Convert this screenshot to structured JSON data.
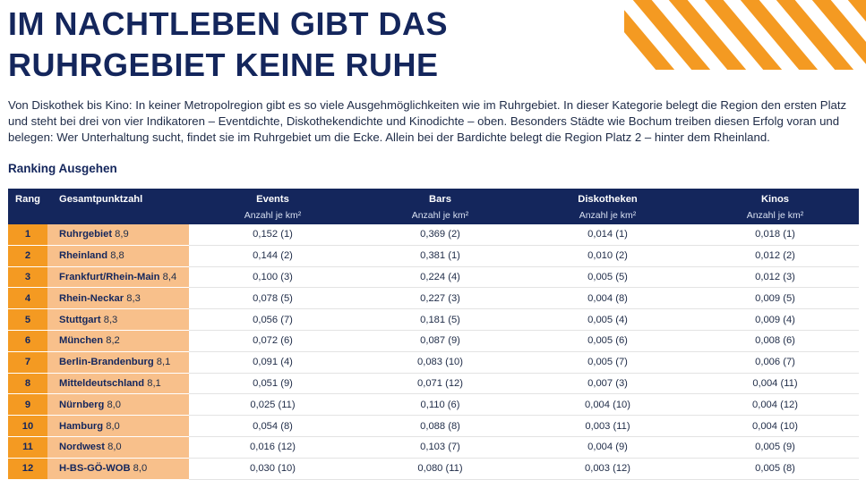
{
  "title_line1": "IM NACHTLEBEN GIBT DAS",
  "title_line2": "RUHRGEBIET KEINE RUHE",
  "intro": "Von Diskothek bis Kino: In keiner Metropolregion gibt es so viele Ausgehmöglichkeiten wie im Ruhrgebiet. In dieser Kategorie belegt die Region den ersten Platz und steht bei drei von vier Indikatoren – Eventdichte, Diskothekendichte und Kinodichte – oben. Besonders Städte wie Bochum treiben diesen Erfolg voran und belegen: Wer Unterhaltung sucht, findet sie im Ruhrgebiet um die Ecke. Allein bei der Bardichte belegt die Region Platz 2 – hinter dem Rheinland.",
  "section_title": "Ranking Ausgehen",
  "colors": {
    "navy": "#14265c",
    "orange": "#f49a22",
    "light_orange": "#f8c08b"
  },
  "table": {
    "headers": {
      "rang": "Rang",
      "gesamt": "Gesamtpunktzahl",
      "events": "Events",
      "bars": "Bars",
      "disko": "Diskotheken",
      "kinos": "Kinos",
      "unit": "Anzahl je km²"
    },
    "rows": [
      {
        "rank": "1",
        "region": "Ruhrgebiet",
        "score": "8,9",
        "events": "0,152 (1)",
        "bars": "0,369 (2)",
        "disko": "0,014 (1)",
        "kinos": "0,018 (1)"
      },
      {
        "rank": "2",
        "region": "Rheinland",
        "score": "8,8",
        "events": "0,144 (2)",
        "bars": "0,381 (1)",
        "disko": "0,010 (2)",
        "kinos": "0,012 (2)"
      },
      {
        "rank": "3",
        "region": "Frankfurt/Rhein-Main",
        "score": "8,4",
        "events": "0,100 (3)",
        "bars": "0,224 (4)",
        "disko": "0,005 (5)",
        "kinos": "0,012 (3)"
      },
      {
        "rank": "4",
        "region": "Rhein-Neckar",
        "score": "8,3",
        "events": "0,078 (5)",
        "bars": "0,227 (3)",
        "disko": "0,004 (8)",
        "kinos": "0,009 (5)"
      },
      {
        "rank": "5",
        "region": "Stuttgart",
        "score": "8,3",
        "events": "0,056 (7)",
        "bars": "0,181 (5)",
        "disko": "0,005 (4)",
        "kinos": "0,009 (4)"
      },
      {
        "rank": "6",
        "region": "München",
        "score": "8,2",
        "events": "0,072 (6)",
        "bars": "0,087 (9)",
        "disko": "0,005 (6)",
        "kinos": "0,008 (6)"
      },
      {
        "rank": "7",
        "region": "Berlin-Brandenburg",
        "score": "8,1",
        "events": "0,091 (4)",
        "bars": "0,083 (10)",
        "disko": "0,005 (7)",
        "kinos": "0,006 (7)"
      },
      {
        "rank": "8",
        "region": "Mitteldeutschland",
        "score": "8,1",
        "events": "0,051 (9)",
        "bars": "0,071 (12)",
        "disko": "0,007 (3)",
        "kinos": "0,004 (11)"
      },
      {
        "rank": "9",
        "region": "Nürnberg",
        "score": "8,0",
        "events": "0,025 (11)",
        "bars": "0,110 (6)",
        "disko": "0,004 (10)",
        "kinos": "0,004 (12)"
      },
      {
        "rank": "10",
        "region": "Hamburg",
        "score": "8,0",
        "events": "0,054 (8)",
        "bars": "0,088 (8)",
        "disko": "0,003 (11)",
        "kinos": "0,004 (10)"
      },
      {
        "rank": "11",
        "region": "Nordwest",
        "score": "8,0",
        "events": "0,016 (12)",
        "bars": "0,103 (7)",
        "disko": "0,004 (9)",
        "kinos": "0,005 (9)"
      },
      {
        "rank": "12",
        "region": "H-BS-GÖ-WOB",
        "score": "8,0",
        "events": "0,030 (10)",
        "bars": "0,080 (11)",
        "disko": "0,003 (12)",
        "kinos": "0,005 (8)"
      }
    ]
  }
}
